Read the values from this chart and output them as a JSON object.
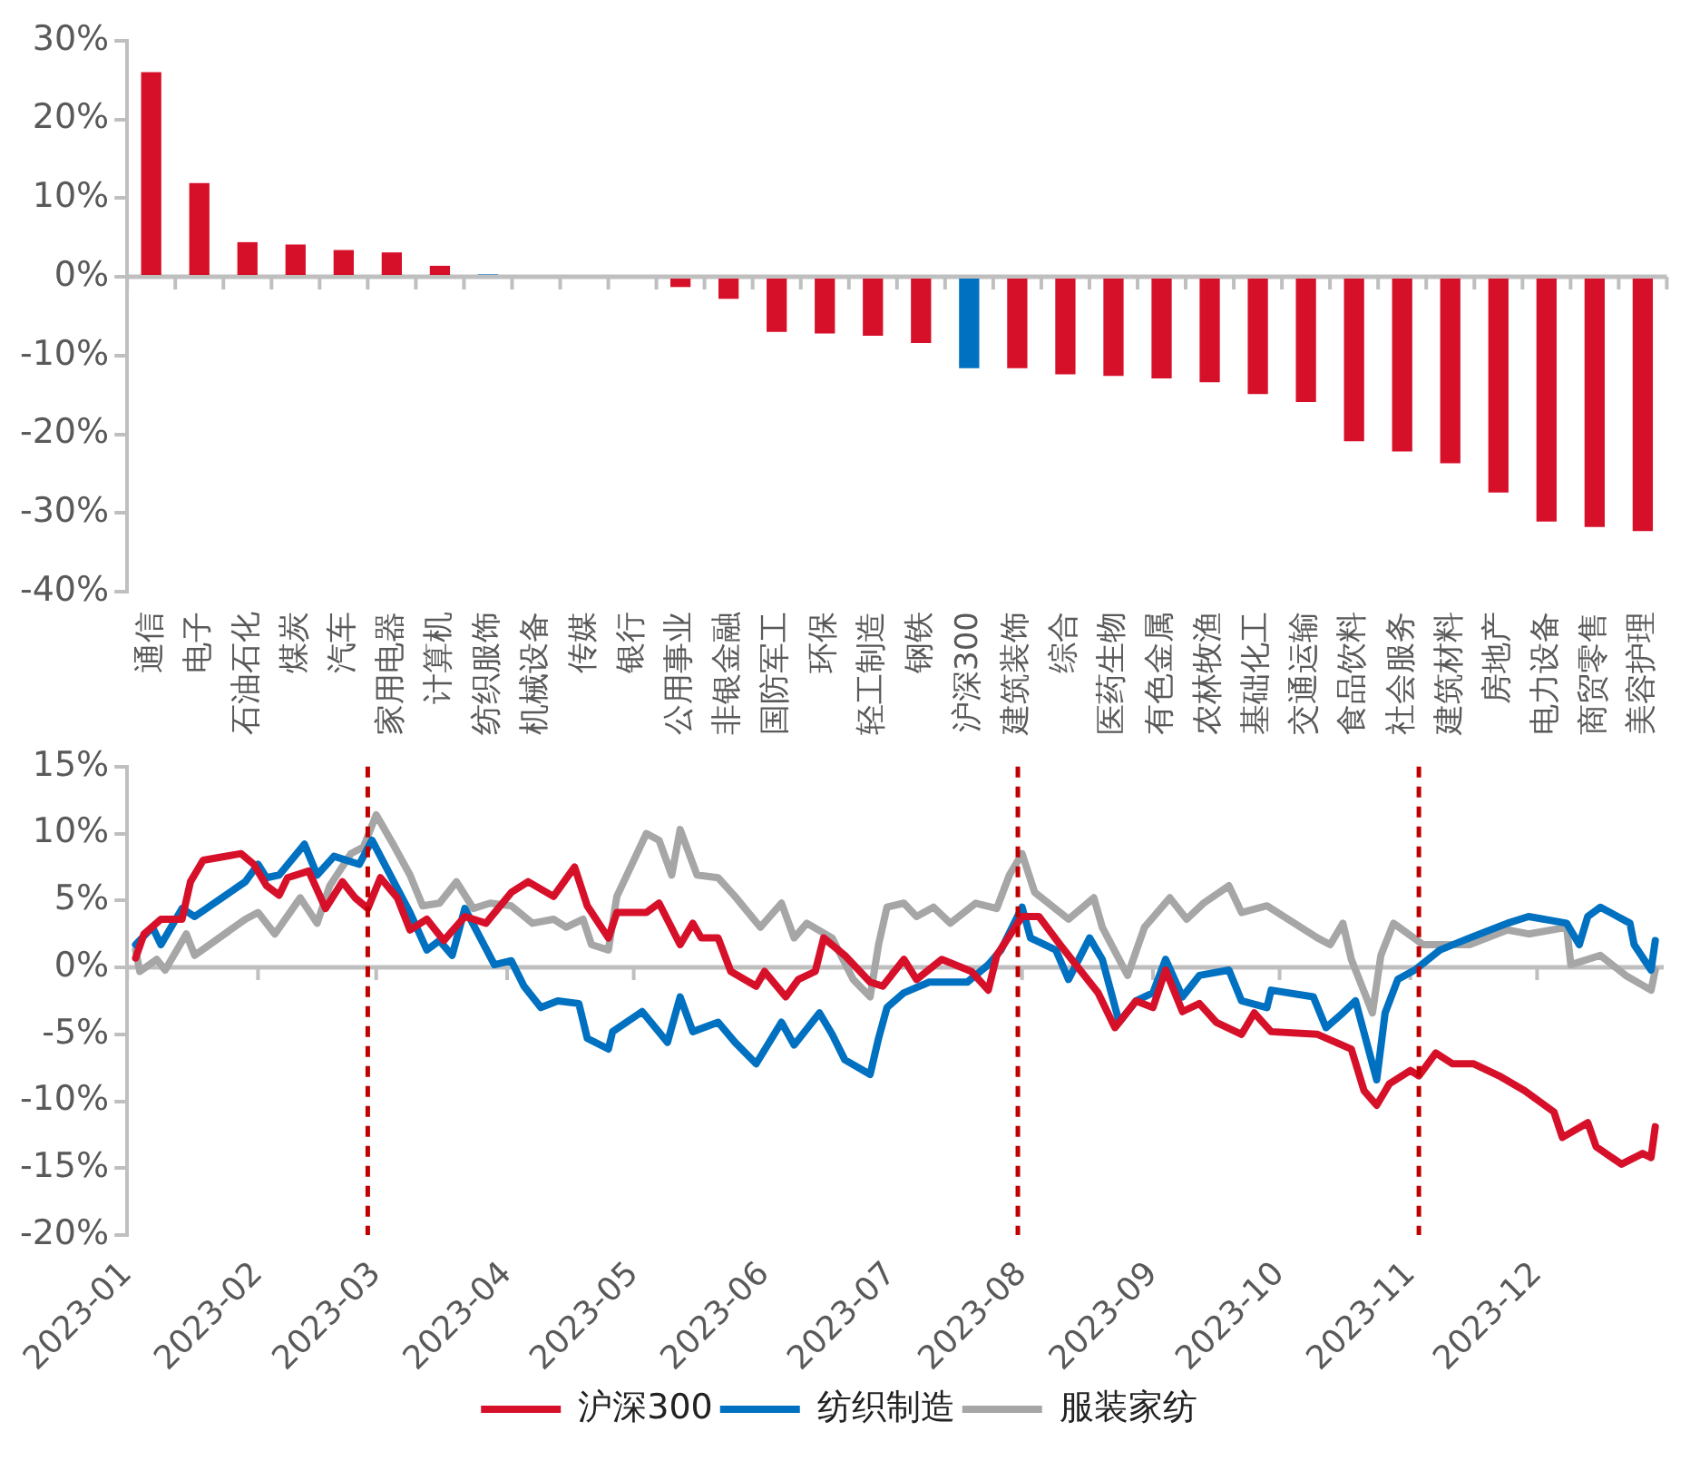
{
  "chart_data": [
    {
      "type": "bar",
      "categories": [
        "通信",
        "电子",
        "石油石化",
        "煤炭",
        "汽车",
        "家用电器",
        "计算机",
        "纺织服饰",
        "机械设备",
        "传媒",
        "银行",
        "公用事业",
        "非银金融",
        "国防军工",
        "环保",
        "轻工制造",
        "钢铁",
        "沪深300",
        "建筑装饰",
        "综合",
        "医药生物",
        "有色金属",
        "农林牧渔",
        "基础化工",
        "交通运输",
        "食品饮料",
        "社会服务",
        "建筑材料",
        "房地产",
        "电力设备",
        "商贸零售",
        "美容护理"
      ],
      "values": [
        26.0,
        11.9,
        4.4,
        4.1,
        3.4,
        3.1,
        1.4,
        0.3,
        0,
        0,
        0,
        -1.3,
        -2.8,
        -7.0,
        -7.2,
        -7.5,
        -8.4,
        -11.6,
        -11.6,
        -12.4,
        -12.6,
        -12.9,
        -13.4,
        -14.9,
        -15.9,
        -20.9,
        -22.2,
        -23.7,
        -27.4,
        -31.1,
        -31.8,
        -32.3
      ],
      "colors": [
        "#d7102a",
        "#d7102a",
        "#d7102a",
        "#d7102a",
        "#d7102a",
        "#d7102a",
        "#d7102a",
        "#0070c0",
        "#d7102a",
        "#d7102a",
        "#d7102a",
        "#d7102a",
        "#d7102a",
        "#d7102a",
        "#d7102a",
        "#d7102a",
        "#d7102a",
        "#0070c0",
        "#d7102a",
        "#d7102a",
        "#d7102a",
        "#d7102a",
        "#d7102a",
        "#d7102a",
        "#d7102a",
        "#d7102a",
        "#d7102a",
        "#d7102a",
        "#d7102a",
        "#d7102a",
        "#d7102a",
        "#d7102a"
      ],
      "ylim": [
        -40,
        30
      ],
      "yticks": [
        {
          "value": -40,
          "label": "-40%"
        },
        {
          "value": -30,
          "label": "-30%"
        },
        {
          "value": -20,
          "label": "-20%"
        },
        {
          "value": -10,
          "label": "-10%"
        },
        {
          "value": 0,
          "label": "0%"
        },
        {
          "value": 10,
          "label": "10%"
        },
        {
          "value": 20,
          "label": "20%"
        },
        {
          "value": 30,
          "label": "30%"
        }
      ]
    },
    {
      "type": "line",
      "legend": "bottom",
      "xlim": [
        "2023-01-01",
        "2023-12-31"
      ],
      "xticks": [
        {
          "value": "2023-01-01",
          "label": "2023-01"
        },
        {
          "value": "2023-02-01",
          "label": "2023-02"
        },
        {
          "value": "2023-03-01",
          "label": "2023-03"
        },
        {
          "value": "2023-04-01",
          "label": "2023-04"
        },
        {
          "value": "2023-05-01",
          "label": "2023-05"
        },
        {
          "value": "2023-06-01",
          "label": "2023-06"
        },
        {
          "value": "2023-07-01",
          "label": "2023-07"
        },
        {
          "value": "2023-08-01",
          "label": "2023-08"
        },
        {
          "value": "2023-09-01",
          "label": "2023-09"
        },
        {
          "value": "2023-10-01",
          "label": "2023-10"
        },
        {
          "value": "2023-11-01",
          "label": "2023-11"
        },
        {
          "value": "2023-12-01",
          "label": "2023-12"
        }
      ],
      "ylim": [
        -20,
        15
      ],
      "yticks": [
        {
          "value": -20,
          "label": "-20%"
        },
        {
          "value": -15,
          "label": "-15%"
        },
        {
          "value": -10,
          "label": "-10%"
        },
        {
          "value": -5,
          "label": "-5%"
        },
        {
          "value": 0,
          "label": "0%"
        },
        {
          "value": 5,
          "label": "5%"
        },
        {
          "value": 10,
          "label": "10%"
        },
        {
          "value": 15,
          "label": "15%"
        }
      ],
      "ref_lines": [
        {
          "axis": "x",
          "value": "2023-02-27",
          "color": "#c00000",
          "line_style": "dashed"
        },
        {
          "axis": "x",
          "value": "2023-07-31",
          "color": "#c00000",
          "line_style": "dashed"
        },
        {
          "axis": "x",
          "value": "2023-11-03",
          "color": "#c00000",
          "line_style": "dashed"
        }
      ],
      "series": [
        {
          "name": "沪深300",
          "color": "#d7102a",
          "x": [
            "2023-01-03",
            "2023-01-05",
            "2023-01-09",
            "2023-01-14",
            "2023-01-16",
            "2023-01-19",
            "2023-01-28",
            "2023-01-31",
            "2023-02-03",
            "2023-02-06",
            "2023-02-08",
            "2023-02-13",
            "2023-02-17",
            "2023-02-21",
            "2023-02-24",
            "2023-02-27",
            "2023-03-02",
            "2023-03-06",
            "2023-03-09",
            "2023-03-13",
            "2023-03-17",
            "2023-03-22",
            "2023-03-27",
            "2023-04-02",
            "2023-04-06",
            "2023-04-12",
            "2023-04-17",
            "2023-04-20",
            "2023-04-25",
            "2023-04-27",
            "2023-05-04",
            "2023-05-07",
            "2023-05-12",
            "2023-05-15",
            "2023-05-17",
            "2023-05-21",
            "2023-05-24",
            "2023-05-30",
            "2023-06-01",
            "2023-06-06",
            "2023-06-09",
            "2023-06-13",
            "2023-06-15",
            "2023-06-20",
            "2023-06-26",
            "2023-06-29",
            "2023-07-04",
            "2023-07-07",
            "2023-07-13",
            "2023-07-20",
            "2023-07-24",
            "2023-07-26",
            "2023-08-01",
            "2023-08-05",
            "2023-08-10",
            "2023-08-15",
            "2023-08-19",
            "2023-08-23",
            "2023-08-28",
            "2023-09-01",
            "2023-09-04",
            "2023-09-08",
            "2023-09-12",
            "2023-09-16",
            "2023-09-22",
            "2023-09-25",
            "2023-09-29",
            "2023-10-10",
            "2023-10-18",
            "2023-10-21",
            "2023-10-24",
            "2023-10-27",
            "2023-11-01",
            "2023-11-03",
            "2023-11-07",
            "2023-11-11",
            "2023-11-16",
            "2023-11-22",
            "2023-11-28",
            "2023-12-05",
            "2023-12-07",
            "2023-12-13",
            "2023-12-15",
            "2023-12-21",
            "2023-12-26",
            "2023-12-28",
            "2023-12-29"
          ],
          "values": [
            0.7,
            2.5,
            3.6,
            3.6,
            6.4,
            8.0,
            8.5,
            7.7,
            6.1,
            5.4,
            6.7,
            7.2,
            4.4,
            6.4,
            5.2,
            4.4,
            6.7,
            5.2,
            2.8,
            3.6,
            2.0,
            3.8,
            3.3,
            5.6,
            6.4,
            5.3,
            7.5,
            4.6,
            2.2,
            4.1,
            4.1,
            4.8,
            1.7,
            3.3,
            2.2,
            2.2,
            -0.3,
            -1.4,
            -0.3,
            -2.2,
            -0.9,
            -0.3,
            2.2,
            0.9,
            -1.1,
            -1.4,
            0.6,
            -0.9,
            0.6,
            -0.3,
            -1.7,
            0.9,
            3.8,
            3.8,
            1.7,
            -0.3,
            -1.9,
            -4.5,
            -2.5,
            -3.0,
            -0.2,
            -3.3,
            -2.7,
            -4.1,
            -5.0,
            -3.4,
            -4.8,
            -5.0,
            -6.1,
            -9.2,
            -10.3,
            -8.7,
            -7.7,
            -8.1,
            -6.4,
            -7.2,
            -7.2,
            -8.1,
            -9.2,
            -10.8,
            -12.7,
            -11.6,
            -13.4,
            -14.7,
            -13.9,
            -14.2,
            -11.9
          ]
        },
        {
          "name": "纺织制造",
          "color": "#0070c0",
          "x": [
            "2023-01-03",
            "2023-01-07",
            "2023-01-09",
            "2023-01-14",
            "2023-01-17",
            "2023-01-29",
            "2023-02-01",
            "2023-02-03",
            "2023-02-06",
            "2023-02-12",
            "2023-02-15",
            "2023-02-19",
            "2023-02-25",
            "2023-02-28",
            "2023-03-06",
            "2023-03-09",
            "2023-03-13",
            "2023-03-16",
            "2023-03-19",
            "2023-03-22",
            "2023-03-29",
            "2023-04-02",
            "2023-04-05",
            "2023-04-09",
            "2023-04-13",
            "2023-04-18",
            "2023-04-20",
            "2023-04-25",
            "2023-04-26",
            "2023-05-03",
            "2023-05-09",
            "2023-05-12",
            "2023-05-15",
            "2023-05-21",
            "2023-05-25",
            "2023-05-30",
            "2023-06-05",
            "2023-06-08",
            "2023-06-14",
            "2023-06-17",
            "2023-06-20",
            "2023-06-26",
            "2023-06-28",
            "2023-06-30",
            "2023-07-04",
            "2023-07-10",
            "2023-07-19",
            "2023-07-24",
            "2023-07-27",
            "2023-08-01",
            "2023-08-03",
            "2023-08-09",
            "2023-08-12",
            "2023-08-17",
            "2023-08-20",
            "2023-08-24",
            "2023-08-28",
            "2023-09-01",
            "2023-09-04",
            "2023-09-08",
            "2023-09-12",
            "2023-09-19",
            "2023-09-22",
            "2023-09-28",
            "2023-09-29",
            "2023-10-09",
            "2023-10-12",
            "2023-10-16",
            "2023-10-19",
            "2023-10-24",
            "2023-10-26",
            "2023-10-29",
            "2023-11-02",
            "2023-11-08",
            "2023-11-15",
            "2023-11-24",
            "2023-11-29",
            "2023-12-08",
            "2023-12-11",
            "2023-12-13",
            "2023-12-16",
            "2023-12-23",
            "2023-12-24",
            "2023-12-28",
            "2023-12-29"
          ],
          "values": [
            1.7,
            3.0,
            1.7,
            4.4,
            3.8,
            6.4,
            7.7,
            6.7,
            6.9,
            9.2,
            6.9,
            8.3,
            7.7,
            9.5,
            5.9,
            4.1,
            1.3,
            2.0,
            0.9,
            4.4,
            0.2,
            0.5,
            -1.4,
            -3.0,
            -2.5,
            -2.7,
            -5.3,
            -6.1,
            -4.8,
            -3.3,
            -5.6,
            -2.2,
            -4.8,
            -4.1,
            -5.6,
            -7.2,
            -4.1,
            -5.8,
            -3.4,
            -5.0,
            -6.9,
            -8.0,
            -5.3,
            -3.0,
            -1.9,
            -1.1,
            -1.1,
            0.2,
            1.3,
            4.5,
            2.2,
            1.3,
            -0.9,
            2.2,
            0.6,
            -4.1,
            -2.5,
            -1.9,
            0.6,
            -2.2,
            -0.6,
            -0.2,
            -2.5,
            -3.0,
            -1.7,
            -2.2,
            -4.5,
            -3.4,
            -2.5,
            -8.4,
            -3.4,
            -0.9,
            -0.2,
            1.3,
            2.2,
            3.3,
            3.8,
            3.3,
            1.7,
            3.8,
            4.5,
            3.3,
            1.7,
            -0.2,
            2.0
          ]
        },
        {
          "name": "服装家纺",
          "color": "#a6a6a6",
          "x": [
            "2023-01-03",
            "2023-01-04",
            "2023-01-08",
            "2023-01-10",
            "2023-01-15",
            "2023-01-17",
            "2023-01-29",
            "2023-02-01",
            "2023-02-05",
            "2023-02-11",
            "2023-02-15",
            "2023-02-18",
            "2023-02-23",
            "2023-02-26",
            "2023-03-01",
            "2023-03-05",
            "2023-03-09",
            "2023-03-12",
            "2023-03-16",
            "2023-03-20",
            "2023-03-24",
            "2023-03-28",
            "2023-04-02",
            "2023-04-07",
            "2023-04-12",
            "2023-04-15",
            "2023-04-19",
            "2023-04-21",
            "2023-04-25",
            "2023-04-27",
            "2023-05-04",
            "2023-05-07",
            "2023-05-10",
            "2023-05-12",
            "2023-05-16",
            "2023-05-21",
            "2023-05-25",
            "2023-05-31",
            "2023-06-05",
            "2023-06-08",
            "2023-06-11",
            "2023-06-17",
            "2023-06-22",
            "2023-06-26",
            "2023-06-28",
            "2023-06-30",
            "2023-07-04",
            "2023-07-07",
            "2023-07-11",
            "2023-07-15",
            "2023-07-21",
            "2023-07-26",
            "2023-07-29",
            "2023-08-01",
            "2023-08-04",
            "2023-08-08",
            "2023-08-12",
            "2023-08-18",
            "2023-08-20",
            "2023-08-26",
            "2023-08-30",
            "2023-09-05",
            "2023-09-09",
            "2023-09-13",
            "2023-09-19",
            "2023-09-22",
            "2023-09-28",
            "2023-10-10",
            "2023-10-13",
            "2023-10-16",
            "2023-10-18",
            "2023-10-23",
            "2023-10-25",
            "2023-10-28",
            "2023-11-04",
            "2023-11-15",
            "2023-11-24",
            "2023-11-29",
            "2023-12-08",
            "2023-12-09",
            "2023-12-16",
            "2023-12-22",
            "2023-12-28",
            "2023-12-29"
          ],
          "values": [
            1.3,
            -0.3,
            0.6,
            -0.2,
            2.5,
            0.9,
            3.6,
            4.1,
            2.5,
            5.2,
            3.3,
            6.1,
            8.5,
            9.0,
            11.4,
            9.2,
            6.9,
            4.6,
            4.8,
            6.4,
            4.4,
            4.8,
            4.6,
            3.3,
            3.6,
            3.0,
            3.6,
            1.7,
            1.3,
            5.3,
            10.0,
            9.5,
            6.9,
            10.3,
            6.9,
            6.7,
            5.3,
            3.0,
            4.8,
            2.2,
            3.3,
            2.2,
            -0.9,
            -2.2,
            1.7,
            4.5,
            4.8,
            3.8,
            4.5,
            3.3,
            4.8,
            4.4,
            6.9,
            8.5,
            5.6,
            4.6,
            3.6,
            5.2,
            3.0,
            -0.6,
            3.0,
            5.2,
            3.6,
            4.8,
            6.1,
            4.1,
            4.6,
            2.2,
            1.7,
            3.3,
            0.6,
            -3.4,
            0.9,
            3.3,
            1.7,
            1.7,
            2.8,
            2.5,
            3.0,
            0.2,
            0.9,
            -0.6,
            -1.7,
            -0.2
          ]
        }
      ]
    }
  ]
}
